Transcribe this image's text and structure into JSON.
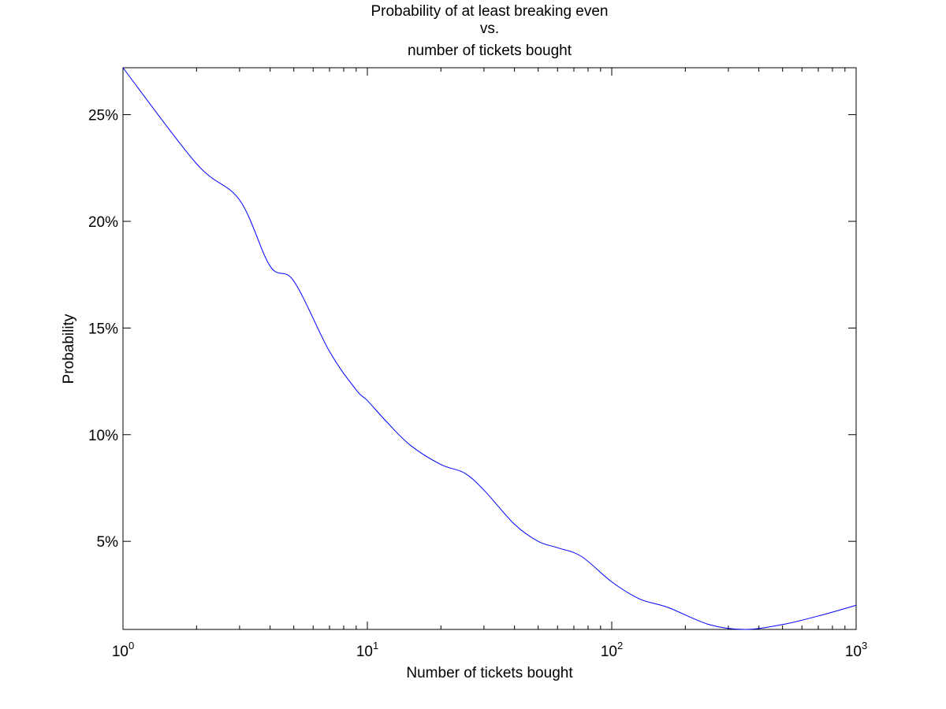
{
  "chart_data": {
    "type": "line",
    "title_lines": [
      "Probability of at least breaking even",
      "vs.",
      "number of tickets bought"
    ],
    "xlabel": "Number of tickets bought",
    "ylabel": "Probability",
    "xscale": "log",
    "xlim": [
      1,
      1000
    ],
    "ylim": [
      0.0087,
      0.272
    ],
    "grid": false,
    "colors": {
      "line": "#0000ff",
      "axes": "#000000",
      "background": "#ffffff"
    },
    "x_ticks": [
      {
        "value": 1,
        "base": "10",
        "exp": "0"
      },
      {
        "value": 10,
        "base": "10",
        "exp": "1"
      },
      {
        "value": 100,
        "base": "10",
        "exp": "2"
      },
      {
        "value": 1000,
        "base": "10",
        "exp": "3"
      }
    ],
    "y_ticks": [
      {
        "value": 0.05,
        "label": "5%"
      },
      {
        "value": 0.1,
        "label": "10%"
      },
      {
        "value": 0.15,
        "label": "15%"
      },
      {
        "value": 0.2,
        "label": "20%"
      },
      {
        "value": 0.25,
        "label": "25%"
      }
    ],
    "series": [
      {
        "x": [
          1,
          2,
          3,
          4,
          5,
          7,
          9,
          10,
          12,
          15,
          20,
          25,
          30,
          40,
          50,
          60,
          75,
          100,
          130,
          170,
          250,
          350,
          500,
          700,
          1000
        ],
        "y": [
          0.272,
          0.227,
          0.21,
          0.179,
          0.172,
          0.139,
          0.121,
          0.116,
          0.106,
          0.095,
          0.086,
          0.082,
          0.074,
          0.058,
          0.05,
          0.047,
          0.043,
          0.031,
          0.023,
          0.019,
          0.011,
          0.0087,
          0.011,
          0.015,
          0.02
        ]
      }
    ]
  }
}
